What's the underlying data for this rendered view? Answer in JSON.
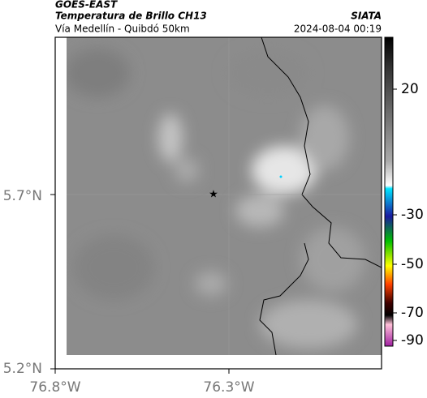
{
  "header": {
    "satellite": "GOES-EAST",
    "product": "Temperatura de Brillo CH13",
    "region": "Vía Medellín - Quibdó 50km",
    "agency": "SIATA",
    "timestamp": "2024-08-04 00:19"
  },
  "axes": {
    "latitude_labels": [
      "5.7°N",
      "5.2°N"
    ],
    "longitude_labels": [
      "76.8°W",
      "76.3°W"
    ]
  },
  "colorbar": {
    "ticks": [
      20,
      -30,
      -50,
      -70,
      -90
    ]
  }
}
